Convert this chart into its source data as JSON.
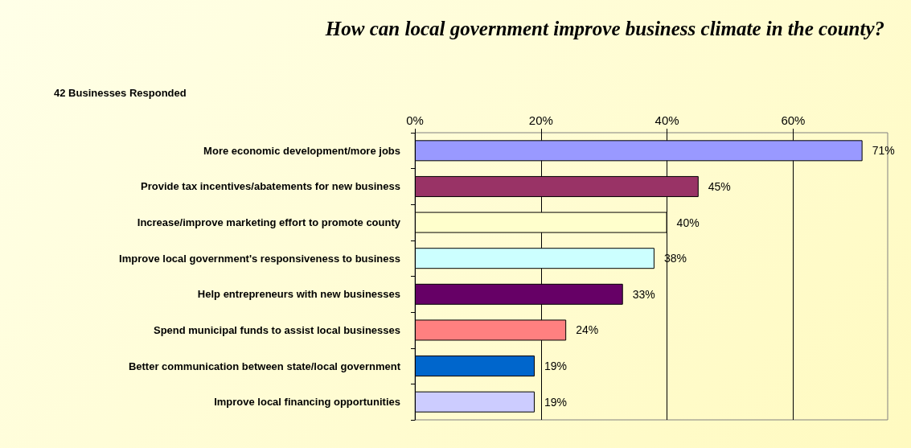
{
  "chart_data": {
    "type": "bar",
    "orientation": "horizontal",
    "title": "How can local government improve business climate in the county?",
    "subtitle": "42 Businesses Responded",
    "categories": [
      "More economic development/more jobs",
      "Provide tax incentives/abatements for new business",
      "Increase/improve marketing effort to promote county",
      "Improve local government's responsiveness to business",
      "Help entrepreneurs with new businesses",
      "Spend municipal funds to assist local businesses",
      "Better communication between state/local government",
      "Improve local financing opportunities"
    ],
    "values": [
      71,
      45,
      40,
      38,
      33,
      24,
      19,
      19
    ],
    "value_labels": [
      "71%",
      "45%",
      "40%",
      "38%",
      "33%",
      "24%",
      "19%",
      "19%"
    ],
    "colors": [
      "#9999ff",
      "#993366",
      "#ffffcc",
      "#ccffff",
      "#660066",
      "#ff8080",
      "#0066cc",
      "#ccccff"
    ],
    "xlim": [
      0,
      75
    ],
    "xticks": [
      {
        "value": 0,
        "label": "0%"
      },
      {
        "value": 20,
        "label": "20%"
      },
      {
        "value": 40,
        "label": "40%"
      },
      {
        "value": 60,
        "label": "60%"
      }
    ],
    "grid": "x"
  }
}
